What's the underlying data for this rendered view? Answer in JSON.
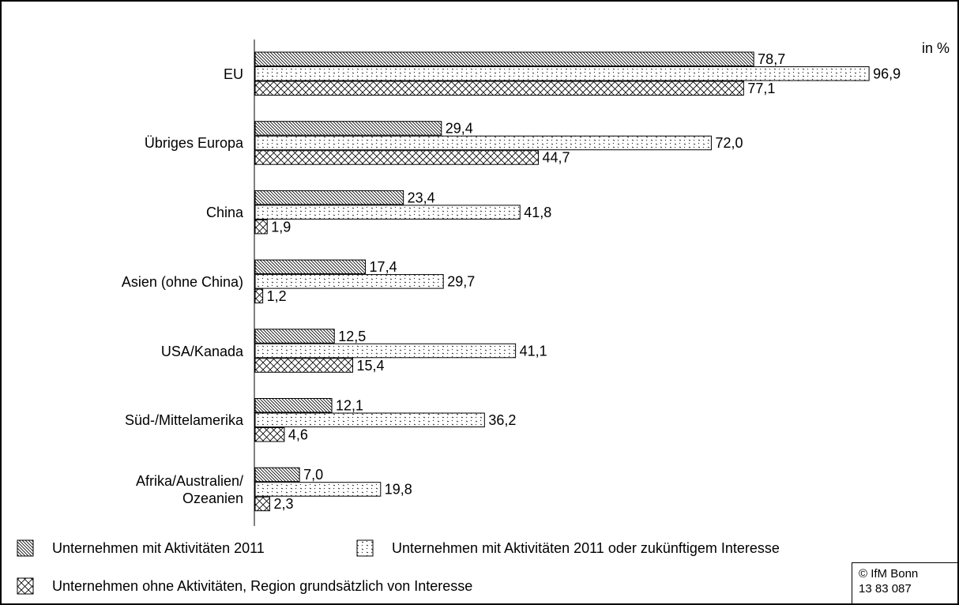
{
  "chart_data": {
    "type": "hbar",
    "unit_label": "in %",
    "categories": [
      "EU",
      "Übriges Europa",
      "China",
      "Asien (ohne China)",
      "USA/Kanada",
      "Süd-/Mittelamerika",
      "Afrika/Australien/\nOzeanien"
    ],
    "series": [
      {
        "name": "Unternehmen mit Aktivitäten 2011",
        "color": "#000000",
        "pattern": "diagonal",
        "values": [
          78.7,
          29.4,
          23.4,
          17.4,
          12.5,
          12.1,
          7.0
        ],
        "value_labels": [
          "78,7",
          "29,4",
          "23,4",
          "17,4",
          "12,5",
          "12,1",
          "7,0"
        ]
      },
      {
        "name": "Unternehmen mit Aktivitäten 2011 oder zukünftigem Interesse",
        "color": "#000000",
        "pattern": "dots",
        "values": [
          96.9,
          72.0,
          41.8,
          29.7,
          41.1,
          36.2,
          19.8
        ],
        "value_labels": [
          "96,9",
          "72,0",
          "41,8",
          "29,7",
          "41,1",
          "36,2",
          "19,8"
        ]
      },
      {
        "name": "Unternehmen ohne Aktivitäten, Region grundsätzlich von Interesse",
        "color": "#000000",
        "pattern": "crosshatch",
        "values": [
          77.1,
          44.7,
          1.9,
          1.2,
          15.4,
          4.6,
          2.3
        ],
        "value_labels": [
          "77,1",
          "44,7",
          "1,9",
          "1,2",
          "15,4",
          "4,6",
          "2,3"
        ]
      }
    ],
    "source": [
      "© IfM Bonn",
      "13 83 087"
    ]
  }
}
